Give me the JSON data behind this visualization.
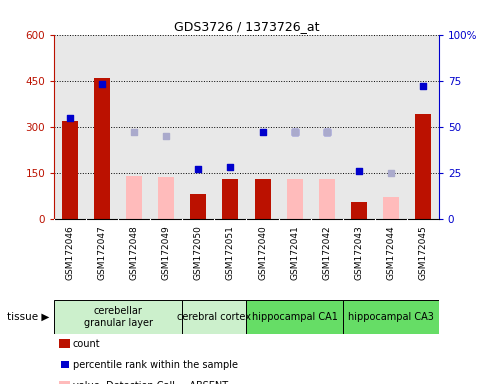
{
  "title": "GDS3726 / 1373726_at",
  "samples": [
    "GSM172046",
    "GSM172047",
    "GSM172048",
    "GSM172049",
    "GSM172050",
    "GSM172051",
    "GSM172040",
    "GSM172041",
    "GSM172042",
    "GSM172043",
    "GSM172044",
    "GSM172045"
  ],
  "count_present": [
    320,
    460,
    0,
    0,
    80,
    130,
    130,
    130,
    130,
    55,
    0,
    340
  ],
  "count_absent_value": [
    0,
    0,
    140,
    135,
    0,
    0,
    0,
    130,
    130,
    0,
    70,
    0
  ],
  "rank_present": [
    55,
    73,
    0,
    0,
    27,
    28,
    47,
    47,
    47,
    26,
    0,
    72
  ],
  "rank_absent": [
    0,
    0,
    47,
    45,
    0,
    0,
    0,
    47,
    47,
    0,
    25,
    0
  ],
  "tissues": [
    {
      "label": "cerebellar\ngranular layer",
      "start": 0,
      "end": 4,
      "color": "#ccf0cc"
    },
    {
      "label": "cerebral cortex",
      "start": 4,
      "end": 6,
      "color": "#ccf0cc"
    },
    {
      "label": "hippocampal CA1",
      "start": 6,
      "end": 9,
      "color": "#66dd66"
    },
    {
      "label": "hippocampal CA3",
      "start": 9,
      "end": 12,
      "color": "#66dd66"
    }
  ],
  "ylim_left": [
    0,
    600
  ],
  "ylim_right": [
    0,
    100
  ],
  "yticks_left": [
    0,
    150,
    300,
    450,
    600
  ],
  "yticks_right": [
    0,
    25,
    50,
    75,
    100
  ],
  "bar_color_present": "#bb1100",
  "bar_color_absent": "#ffbbbb",
  "dot_color_present": "#0000cc",
  "dot_color_absent": "#aaaacc",
  "bg_color": "#e8e8e8",
  "xaxis_bg": "#cccccc"
}
